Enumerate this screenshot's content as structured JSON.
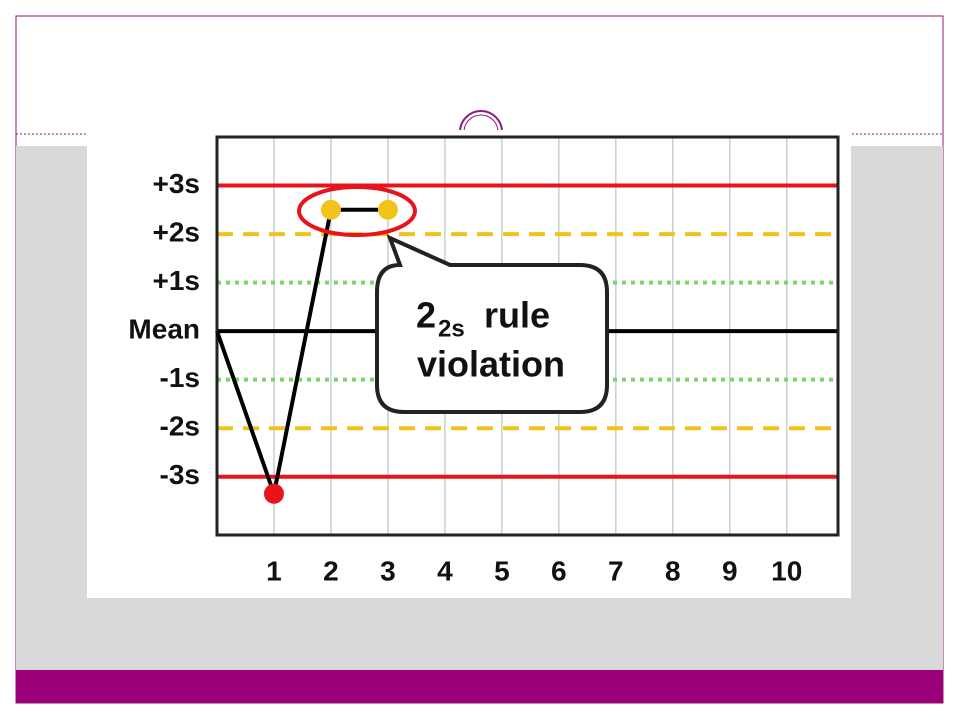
{
  "chart_data": {
    "type": "line",
    "x": [
      0,
      1,
      2,
      3
    ],
    "values": [
      0,
      -3.35,
      2.5,
      2.5
    ],
    "line_color": "#000000",
    "marker_colors": [
      null,
      "#e8141c",
      "#f2c31a",
      "#f2c31a"
    ],
    "xlim": [
      0,
      10.9
    ],
    "xticks": [
      1,
      2,
      3,
      4,
      5,
      6,
      7,
      8,
      9,
      10
    ],
    "ylim": [
      -4.2,
      4
    ],
    "yticks": [
      {
        "value": 3,
        "label": "+3s"
      },
      {
        "value": 2,
        "label": "+2s"
      },
      {
        "value": 1,
        "label": "+1s"
      },
      {
        "value": 0,
        "label": "Mean"
      },
      {
        "value": -1,
        "label": "-1s"
      },
      {
        "value": -2,
        "label": "-2s"
      },
      {
        "value": -3,
        "label": "-3s"
      }
    ],
    "grid_styles": [
      {
        "color": "#e8141c",
        "dash": "solid"
      },
      {
        "color": "#f2c31a",
        "dash": "dashed"
      },
      {
        "color": "#7fd46f",
        "dash": "dotted"
      },
      {
        "color": "#000000",
        "dash": "solid"
      },
      {
        "color": "#7fd46f",
        "dash": "dotted"
      },
      {
        "color": "#f2c31a",
        "dash": "dashed"
      },
      {
        "color": "#e8141c",
        "dash": "solid"
      }
    ],
    "annotation": {
      "main": "2",
      "subscript": "2s",
      "rest": "rule",
      "line2": "violation"
    }
  }
}
